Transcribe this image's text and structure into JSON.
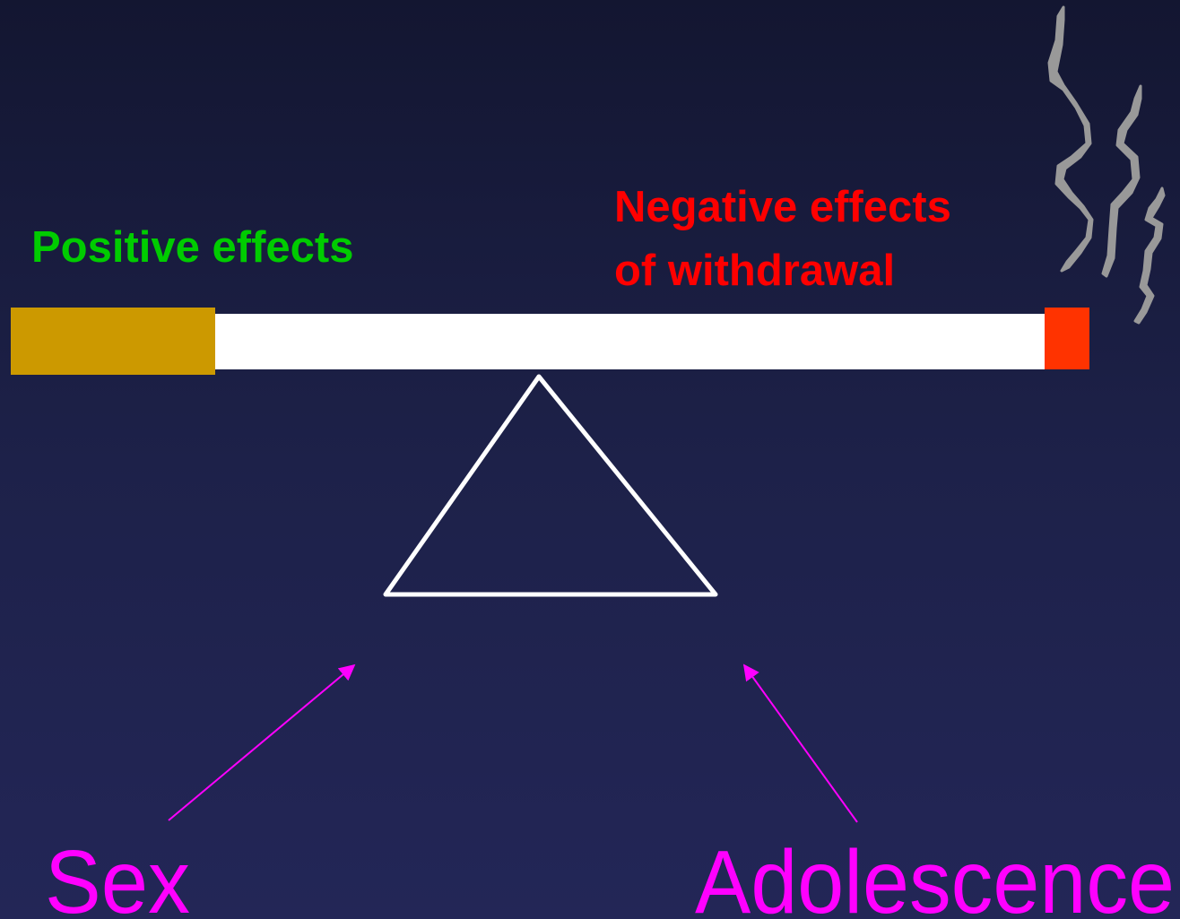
{
  "left_label": "Positive effects",
  "right_label": [
    "Negative effects",
    "of withdrawal"
  ],
  "factors": [
    "Sex",
    "Adolescence"
  ]
}
